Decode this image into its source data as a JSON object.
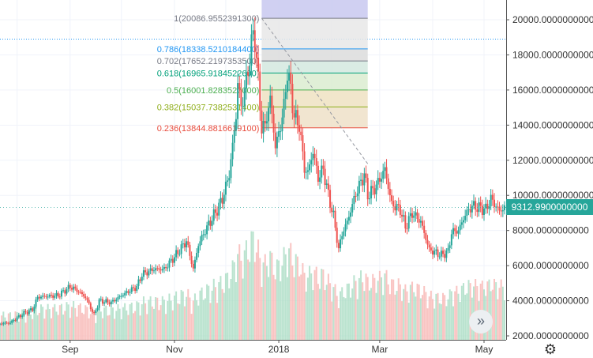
{
  "chart_data": {
    "type": "candlestick",
    "title": "",
    "xlabel": "",
    "ylabel": "",
    "x_ticks": [
      "Sep",
      "Nov",
      "2018",
      "Mar",
      "May"
    ],
    "y_ticks": [
      "2000.0000000000",
      "4000.0000000000",
      "6000.0000000000",
      "8000.0000000000",
      "10000.0000000000",
      "12000.0000000000",
      "14000.0000000000",
      "16000.0000000000",
      "18000.0000000000",
      "20000.0000000000"
    ],
    "ylim": [
      2000,
      20500
    ],
    "x_range": [
      "2017-07-22",
      "2018-05-13"
    ],
    "last_price_label": "9312.9900000000",
    "last_price": 9312.99,
    "horizontal_line": 18900,
    "up_color": "#26a69a",
    "down_color": "#ef5350",
    "price_anchors": [
      [
        "2017-07-22",
        2700
      ],
      [
        "2017-07-28",
        2750
      ],
      [
        "2017-08-05",
        3300
      ],
      [
        "2017-08-10",
        3500
      ],
      [
        "2017-08-13",
        4200
      ],
      [
        "2017-08-17",
        4250
      ],
      [
        "2017-08-25",
        4300
      ],
      [
        "2017-09-01",
        4800
      ],
      [
        "2017-09-05",
        4600
      ],
      [
        "2017-09-10",
        4200
      ],
      [
        "2017-09-15",
        3200
      ],
      [
        "2017-09-18",
        4000
      ],
      [
        "2017-09-25",
        3900
      ],
      [
        "2017-10-01",
        4300
      ],
      [
        "2017-10-10",
        4800
      ],
      [
        "2017-10-13",
        5500
      ],
      [
        "2017-10-20",
        5800
      ],
      [
        "2017-10-26",
        5800
      ],
      [
        "2017-11-01",
        6500
      ],
      [
        "2017-11-08",
        7400
      ],
      [
        "2017-11-12",
        5800
      ],
      [
        "2017-11-15",
        7200
      ],
      [
        "2017-11-19",
        8000
      ],
      [
        "2017-11-26",
        9200
      ],
      [
        "2017-11-29",
        9800
      ],
      [
        "2017-12-03",
        11200
      ],
      [
        "2017-12-07",
        14500
      ],
      [
        "2017-12-08",
        16500
      ],
      [
        "2017-12-10",
        15000
      ],
      [
        "2017-12-13",
        16500
      ],
      [
        "2017-12-17",
        19200
      ],
      [
        "2017-12-18",
        18900
      ],
      [
        "2017-12-20",
        16500
      ],
      [
        "2017-12-22",
        13800
      ],
      [
        "2017-12-24",
        14000
      ],
      [
        "2017-12-27",
        15500
      ],
      [
        "2017-12-30",
        12800
      ],
      [
        "2018-01-01",
        13500
      ],
      [
        "2018-01-04",
        15000
      ],
      [
        "2018-01-06",
        17100
      ],
      [
        "2018-01-08",
        16000
      ],
      [
        "2018-01-10",
        14500
      ],
      [
        "2018-01-13",
        14000
      ],
      [
        "2018-01-16",
        11500
      ],
      [
        "2018-01-18",
        11300
      ],
      [
        "2018-01-21",
        12500
      ],
      [
        "2018-01-24",
        11000
      ],
      [
        "2018-01-27",
        11500
      ],
      [
        "2018-01-30",
        10000
      ],
      [
        "2018-02-02",
        8800
      ],
      [
        "2018-02-05",
        6900
      ],
      [
        "2018-02-07",
        7800
      ],
      [
        "2018-02-10",
        8500
      ],
      [
        "2018-02-15",
        10100
      ],
      [
        "2018-02-20",
        11200
      ],
      [
        "2018-02-22",
        10000
      ],
      [
        "2018-02-26",
        10400
      ],
      [
        "2018-03-01",
        10900
      ],
      [
        "2018-03-04",
        11500
      ],
      [
        "2018-03-08",
        9500
      ],
      [
        "2018-03-13",
        9200
      ],
      [
        "2018-03-16",
        8200
      ],
      [
        "2018-03-20",
        9000
      ],
      [
        "2018-03-25",
        8500
      ],
      [
        "2018-03-30",
        6900
      ],
      [
        "2018-04-06",
        6600
      ],
      [
        "2018-04-10",
        6800
      ],
      [
        "2018-04-12",
        7900
      ],
      [
        "2018-04-16",
        8000
      ],
      [
        "2018-04-20",
        8900
      ],
      [
        "2018-04-24",
        9400
      ],
      [
        "2018-04-28",
        9300
      ],
      [
        "2018-05-02",
        9200
      ],
      [
        "2018-05-05",
        9800
      ],
      [
        "2018-05-10",
        9100
      ],
      [
        "2018-05-13",
        9312.99
      ]
    ],
    "volume_range": [
      200,
      3100
    ],
    "fibonacci": {
      "start": {
        "date": "2017-12-17",
        "price": 20086.95523913
      },
      "end": {
        "date": "2018-02-22",
        "price": 11800
      },
      "box_dates": [
        "2017-12-22",
        "2018-02-22"
      ],
      "levels": [
        {
          "ratio": "1",
          "label": "1(20086.9552391300)",
          "price": 20086.95523913,
          "color": "#787b86",
          "fill": "#e1e1e1"
        },
        {
          "ratio": "0.786",
          "label": "0.786(18338.5210184400)",
          "price": 18338.52101844,
          "color": "#2196f3",
          "fill": "#e8e8e8"
        },
        {
          "ratio": "0.702",
          "label": "0.702(17652.2197353500)",
          "price": 17652.21973535,
          "color": "#787b86",
          "fill": "#dcdcdc"
        },
        {
          "ratio": "0.618",
          "label": "0.618(16965.9184522600)",
          "price": 16965.91845226,
          "color": "#00a07a",
          "fill": "#d4e9df"
        },
        {
          "ratio": "0.5",
          "label": "0.5(16001.8283527000)",
          "price": 16001.8283527,
          "color": "#4caf50",
          "fill": "#dbecd0"
        },
        {
          "ratio": "0.382",
          "label": "0.382(15037.7382531400)",
          "price": 15037.73825314,
          "color": "#8fae1b",
          "fill": "#efe2c2"
        },
        {
          "ratio": "0.236",
          "label": "0.236(13844.8816619100)",
          "price": 13844.88166191,
          "color": "#e84c3d",
          "fill": "#eee0c8"
        }
      ],
      "top_fill": "#c8c8f0"
    }
  },
  "ui": {
    "scroll_icon": "double-chevron-right",
    "settings_icon": "gear"
  }
}
